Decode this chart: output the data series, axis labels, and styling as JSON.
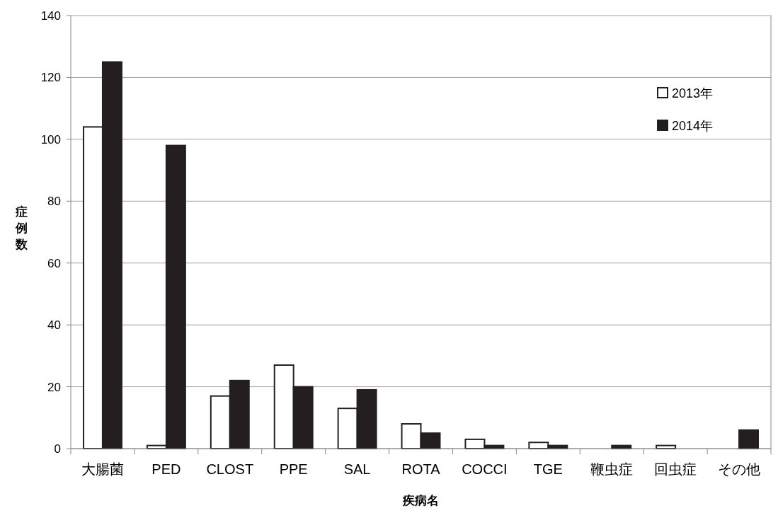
{
  "chart_data": {
    "type": "bar",
    "xlabel": "疾病名",
    "ylabel": "症例数",
    "categories": [
      "大腸菌",
      "PED",
      "CLOST",
      "PPE",
      "SAL",
      "ROTA",
      "COCCI",
      "TGE",
      "鞭虫症",
      "回虫症",
      "その他"
    ],
    "series": [
      {
        "name": "2013年",
        "color": "#ffffff",
        "values": [
          104,
          1,
          17,
          27,
          13,
          8,
          3,
          2,
          0,
          1,
          0
        ]
      },
      {
        "name": "2014年",
        "color": "#231f20",
        "values": [
          125,
          98,
          22,
          20,
          19,
          5,
          1,
          1,
          1,
          0,
          6
        ]
      }
    ],
    "ylim": [
      0,
      140
    ],
    "yticks": [
      0,
      20,
      40,
      60,
      80,
      100,
      120,
      140
    ],
    "grid": "y",
    "legend": "top right"
  }
}
